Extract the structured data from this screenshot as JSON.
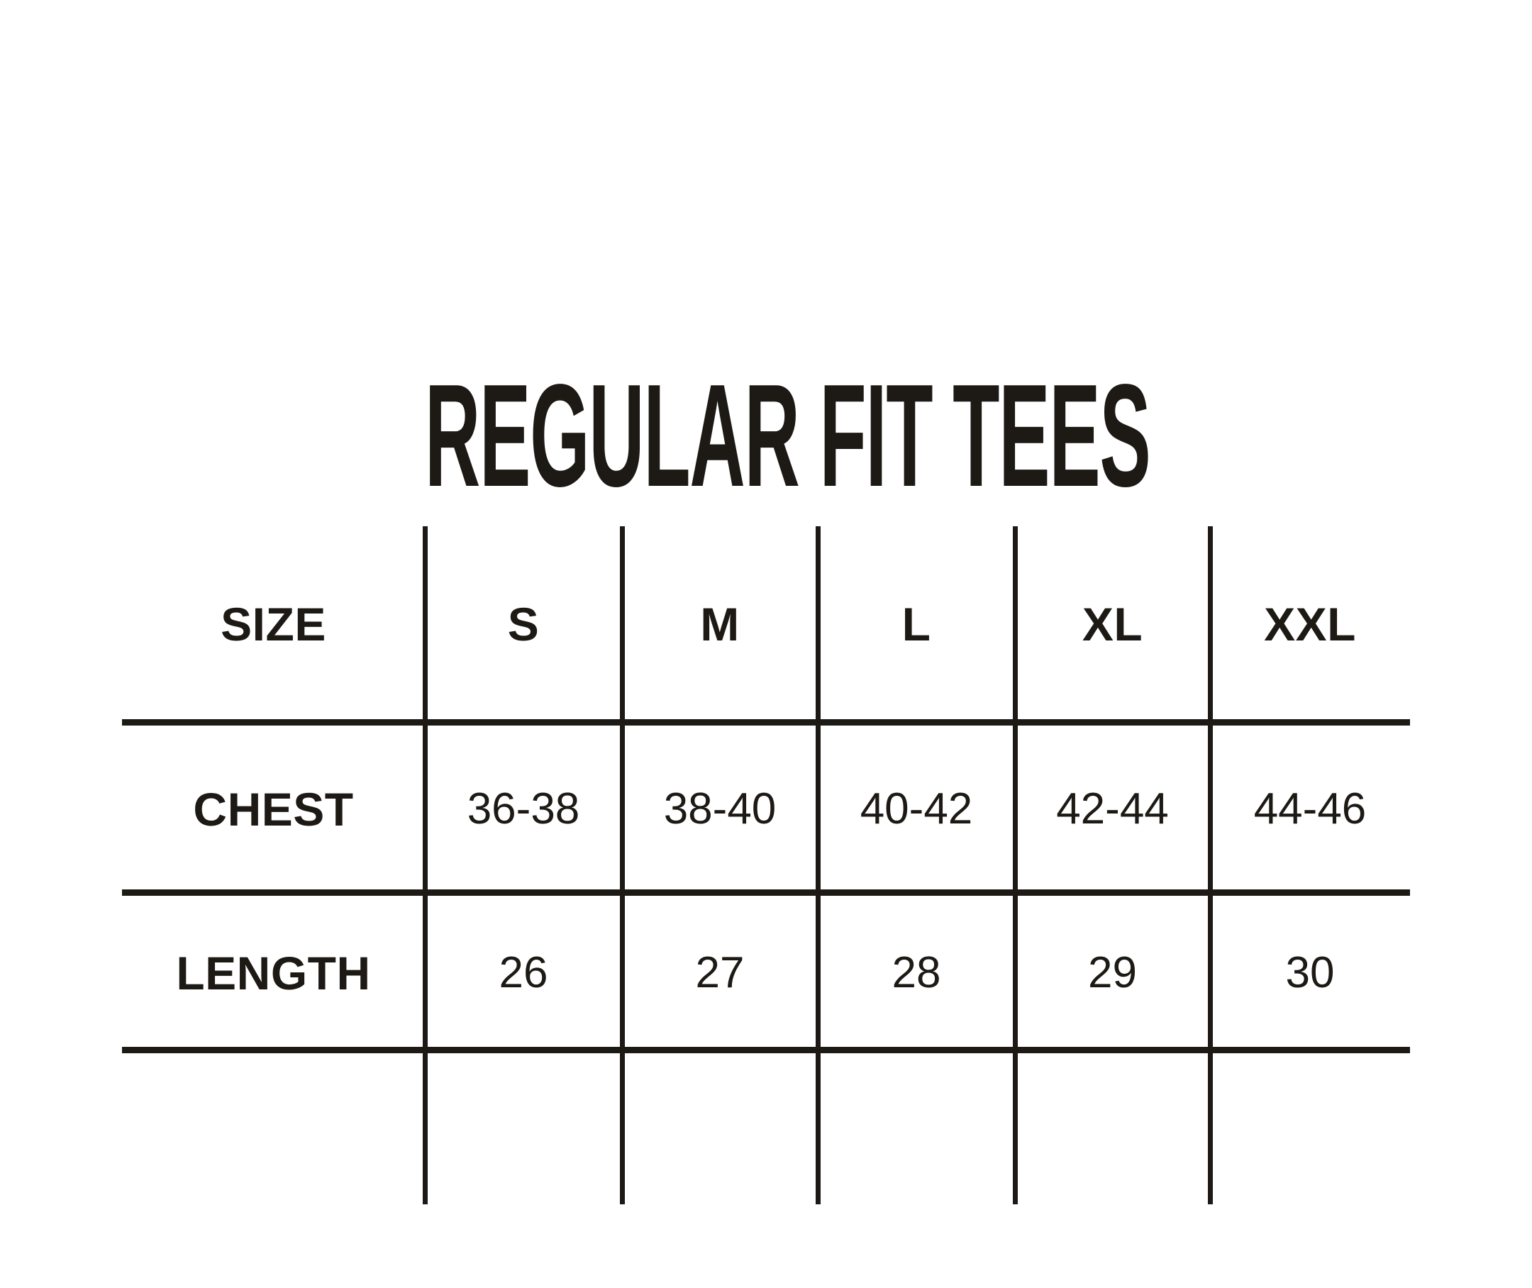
{
  "meta": {
    "colors": {
      "ink": "#1d1914",
      "background": "#ffffff"
    }
  },
  "chart_data": {
    "type": "table",
    "title": "REGULAR FIT TEES",
    "columns": [
      "SIZE",
      "S",
      "M",
      "L",
      "XL",
      "XXL"
    ],
    "rows": [
      [
        "CHEST",
        "36-38",
        "38-40",
        "40-42",
        "42-44",
        "44-46"
      ],
      [
        "LENGTH",
        "26",
        "27",
        "28",
        "29",
        "30"
      ]
    ]
  }
}
